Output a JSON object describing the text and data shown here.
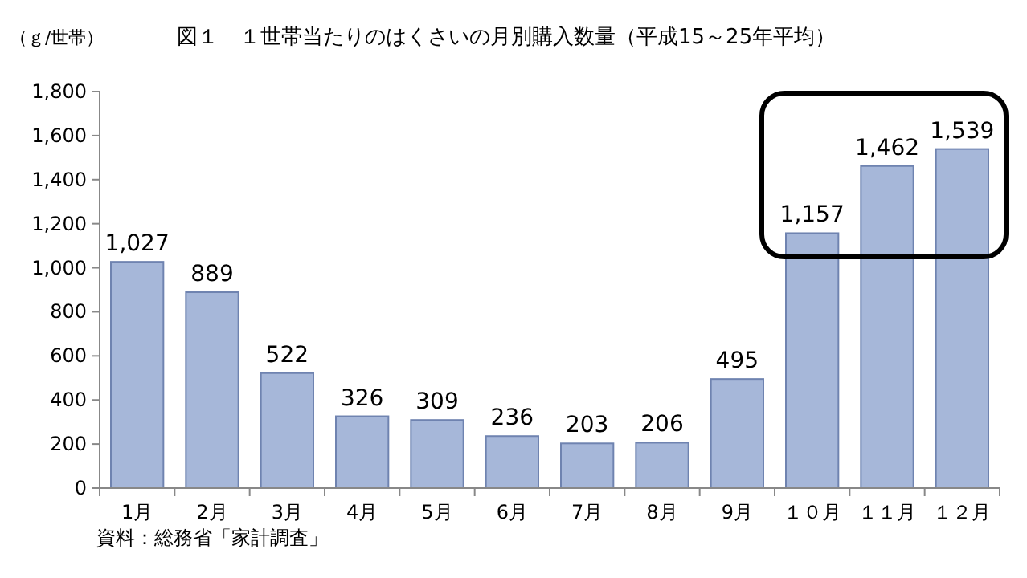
{
  "chart_data": {
    "type": "bar",
    "title": "図１　１世帯当たりのはくさいの月別購入数量（平成15～25年平均）",
    "ylabel": "（ｇ/世帯）",
    "annotations": [
      "資料：総務省「家計調査」"
    ],
    "categories": [
      "1月",
      "2月",
      "3月",
      "4月",
      "5月",
      "6月",
      "7月",
      "8月",
      "9月",
      "１０月",
      "１１月",
      "１２月"
    ],
    "values": [
      1027,
      889,
      522,
      326,
      309,
      236,
      203,
      206,
      495,
      1157,
      1462,
      1539
    ],
    "value_labels": [
      "1,027",
      "889",
      "522",
      "326",
      "309",
      "236",
      "203",
      "206",
      "495",
      "1,157",
      "1,462",
      "1,539"
    ],
    "color": "#a6b7d9",
    "ylim": [
      0,
      1800
    ],
    "yticks": [
      0,
      200,
      400,
      600,
      800,
      {
        "value": 1000,
        "label": "1,000"
      },
      {
        "value": 1200,
        "label": "1,200"
      },
      {
        "value": 1400,
        "label": "1,400"
      },
      {
        "value": 1600,
        "label": "1,600"
      },
      {
        "value": 1800,
        "label": "1,800"
      }
    ],
    "grid": false
  }
}
